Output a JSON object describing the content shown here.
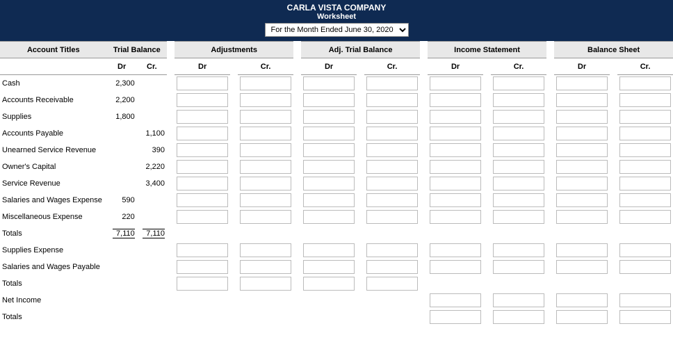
{
  "header": {
    "company": "CARLA VISTA COMPANY",
    "subtitle": "Worksheet",
    "period_label": "For the Month Ended June 30, 2020"
  },
  "columns": {
    "account_titles": "Account Titles",
    "trial_balance": "Trial Balance",
    "adjustments": "Adjustments",
    "adj_trial_balance": "Adj. Trial Balance",
    "income_statement": "Income Statement",
    "balance_sheet": "Balance Sheet",
    "dr": "Dr",
    "cr": "Cr."
  },
  "rows": [
    {
      "title": "Cash",
      "tb_dr": "2,300",
      "tb_cr": "",
      "cells": [
        "adj",
        "atb",
        "is",
        "bs"
      ]
    },
    {
      "title": "Accounts Receivable",
      "tb_dr": "2,200",
      "tb_cr": "",
      "cells": [
        "adj",
        "atb",
        "is",
        "bs"
      ]
    },
    {
      "title": "Supplies",
      "tb_dr": "1,800",
      "tb_cr": "",
      "cells": [
        "adj",
        "atb",
        "is",
        "bs"
      ]
    },
    {
      "title": "Accounts Payable",
      "tb_dr": "",
      "tb_cr": "1,100",
      "cells": [
        "adj",
        "atb",
        "is",
        "bs"
      ]
    },
    {
      "title": "Unearned Service Revenue",
      "tb_dr": "",
      "tb_cr": "390",
      "cells": [
        "adj",
        "atb",
        "is",
        "bs"
      ]
    },
    {
      "title": "Owner's Capital",
      "tb_dr": "",
      "tb_cr": "2,220",
      "cells": [
        "adj",
        "atb",
        "is",
        "bs"
      ]
    },
    {
      "title": "Service Revenue",
      "tb_dr": "",
      "tb_cr": "3,400",
      "cells": [
        "adj",
        "atb",
        "is",
        "bs"
      ]
    },
    {
      "title": "Salaries and Wages Expense",
      "tb_dr": "590",
      "tb_cr": "",
      "cells": [
        "adj",
        "atb",
        "is",
        "bs"
      ]
    },
    {
      "title": "Miscellaneous Expense",
      "tb_dr": "220",
      "tb_cr": "",
      "cells": [
        "adj",
        "atb",
        "is",
        "bs"
      ]
    }
  ],
  "tb_totals": {
    "title": "Totals",
    "dr": "7,110",
    "cr": "7,110"
  },
  "extra_rows": [
    {
      "title": "Supplies Expense",
      "cells": [
        "adj",
        "atb",
        "is",
        "bs"
      ]
    },
    {
      "title": "Salaries and Wages Payable",
      "cells": [
        "adj",
        "atb",
        "is",
        "bs"
      ]
    }
  ],
  "totals2": {
    "title": "Totals",
    "cells": [
      "adj",
      "atb"
    ]
  },
  "net_income": {
    "title": "Net Income",
    "cells": [
      "is",
      "bs"
    ]
  },
  "totals3": {
    "title": "Totals",
    "cells": [
      "is",
      "bs"
    ]
  }
}
